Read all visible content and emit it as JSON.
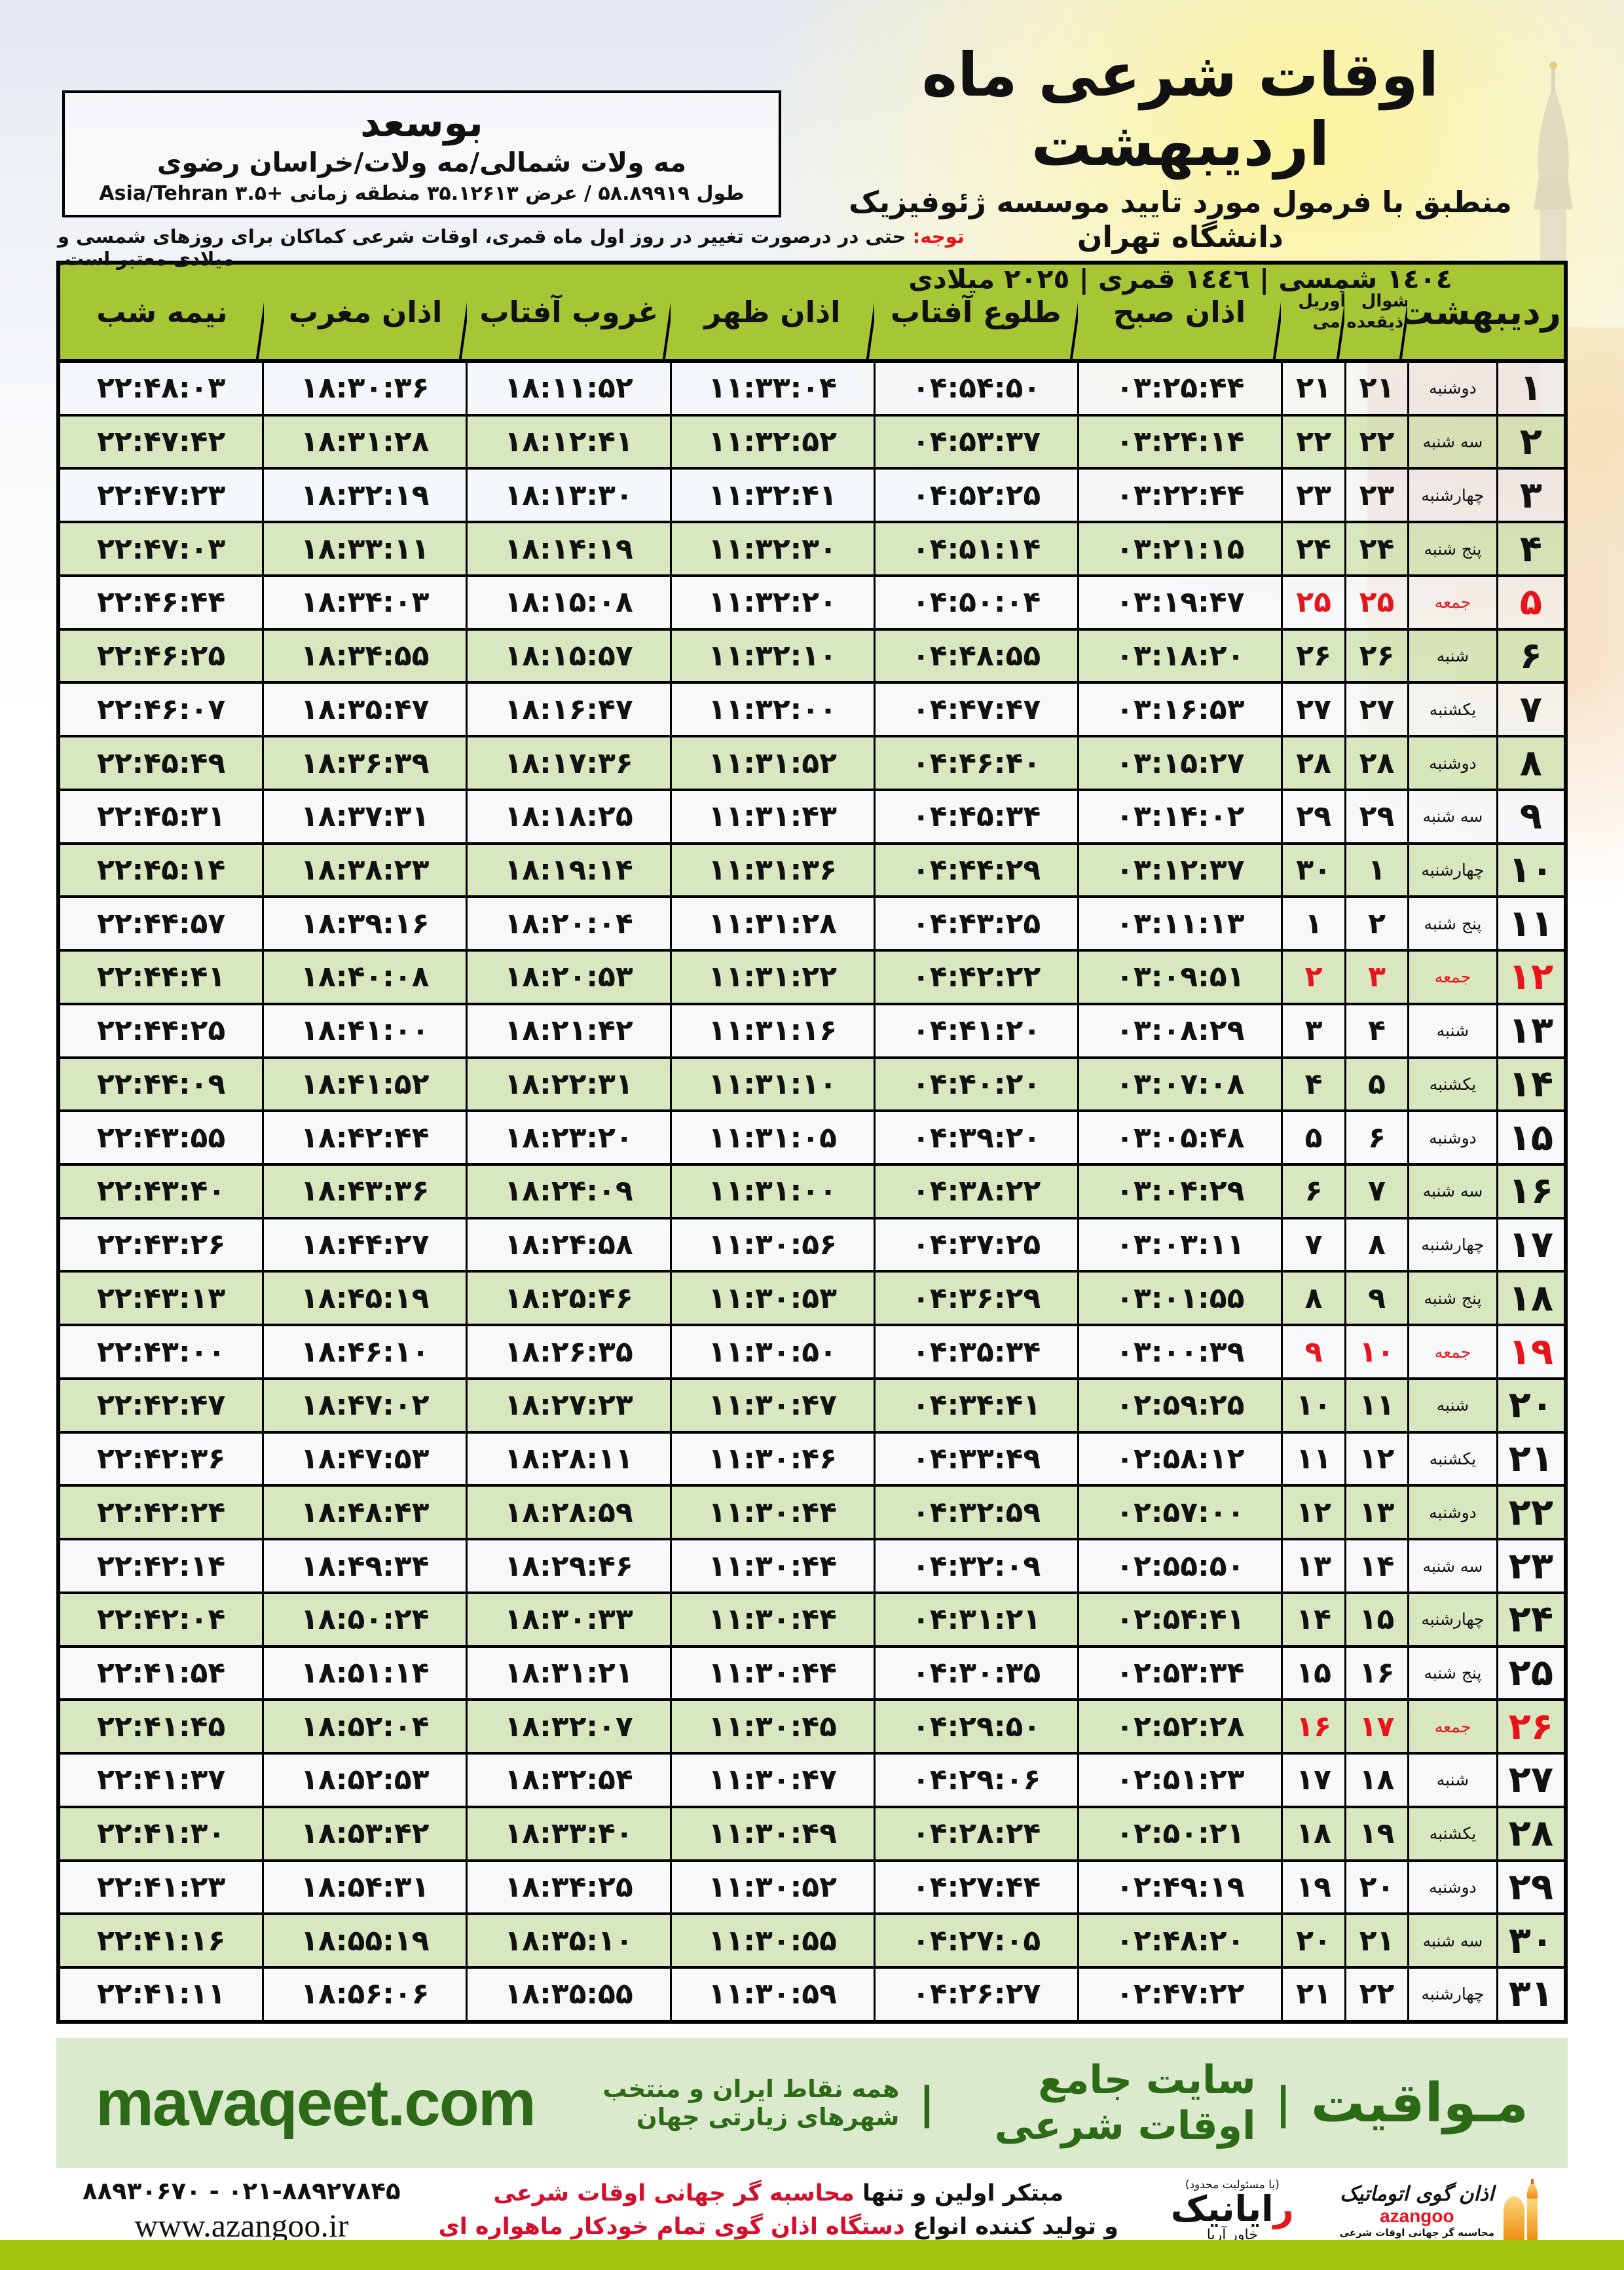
{
  "location_box": {
    "city": "بوسعد",
    "region": "مه ولات شمالی/مه ولات/خراسان رضوی",
    "coordinates": "طول ۵۸.۸۹۹۱۹ / عرض ۳۵.۱۲۶۱۳ منطقه زمانی +۳.۵ Asia/Tehran"
  },
  "header": {
    "title": "اوقات شرعی ماه اردیبهشت",
    "subtitle": "منطبق با فرمول مورد تایید موسسه ژئوفیزیک دانشگاه تهران",
    "years": "١٤٠٤ شمسی | ١٤٤٦ قمری | ٢٠٢٥ میلادی"
  },
  "notice": {
    "label": "توجه:",
    "text": "حتی در درصورت تغییر در روز اول ماه قمری، اوقات شرعی کماکان برای روزهای شمسی و میلادی معتبر است."
  },
  "table": {
    "headers": {
      "month": "اردیبهشت",
      "qamari_top": "شوال",
      "qamari_bottom": "ذیقعده",
      "miladi_top": "آوریل",
      "miladi_bottom": "می",
      "fajr": "اذان صبح",
      "sunrise": "طلوع آفتاب",
      "dhuhr": "اذان ظهر",
      "sunset": "غروب آفتاب",
      "maghrib": "اذان مغرب",
      "midnight": "نیمه شب"
    },
    "rows": [
      {
        "d": "۱",
        "w": "دوشنبه",
        "q": "۲۱",
        "m": "۲۱",
        "sobh": "۰۳:۲۵:۴۴",
        "tolu": "۰۴:۵۴:۵۰",
        "zohr": "۱۱:۳۳:۰۴",
        "ghorub": "۱۸:۱۱:۵۲",
        "maghreb": "۱۸:۳۰:۳۶",
        "nimeshab": "۲۲:۴۸:۰۳",
        "friday": false
      },
      {
        "d": "۲",
        "w": "سه شنبه",
        "q": "۲۲",
        "m": "۲۲",
        "sobh": "۰۳:۲۴:۱۴",
        "tolu": "۰۴:۵۳:۳۷",
        "zohr": "۱۱:۳۲:۵۲",
        "ghorub": "۱۸:۱۲:۴۱",
        "maghreb": "۱۸:۳۱:۲۸",
        "nimeshab": "۲۲:۴۷:۴۲",
        "friday": false
      },
      {
        "d": "۳",
        "w": "چهارشنبه",
        "q": "۲۳",
        "m": "۲۳",
        "sobh": "۰۳:۲۲:۴۴",
        "tolu": "۰۴:۵۲:۲۵",
        "zohr": "۱۱:۳۲:۴۱",
        "ghorub": "۱۸:۱۳:۳۰",
        "maghreb": "۱۸:۳۲:۱۹",
        "nimeshab": "۲۲:۴۷:۲۳",
        "friday": false
      },
      {
        "d": "۴",
        "w": "پنج شنبه",
        "q": "۲۴",
        "m": "۲۴",
        "sobh": "۰۳:۲۱:۱۵",
        "tolu": "۰۴:۵۱:۱۴",
        "zohr": "۱۱:۳۲:۳۰",
        "ghorub": "۱۸:۱۴:۱۹",
        "maghreb": "۱۸:۳۳:۱۱",
        "nimeshab": "۲۲:۴۷:۰۳",
        "friday": false
      },
      {
        "d": "۵",
        "w": "جمعه",
        "q": "۲۵",
        "m": "۲۵",
        "sobh": "۰۳:۱۹:۴۷",
        "tolu": "۰۴:۵۰:۰۴",
        "zohr": "۱۱:۳۲:۲۰",
        "ghorub": "۱۸:۱۵:۰۸",
        "maghreb": "۱۸:۳۴:۰۳",
        "nimeshab": "۲۲:۴۶:۴۴",
        "friday": true
      },
      {
        "d": "۶",
        "w": "شنبه",
        "q": "۲۶",
        "m": "۲۶",
        "sobh": "۰۳:۱۸:۲۰",
        "tolu": "۰۴:۴۸:۵۵",
        "zohr": "۱۱:۳۲:۱۰",
        "ghorub": "۱۸:۱۵:۵۷",
        "maghreb": "۱۸:۳۴:۵۵",
        "nimeshab": "۲۲:۴۶:۲۵",
        "friday": false
      },
      {
        "d": "۷",
        "w": "یکشنبه",
        "q": "۲۷",
        "m": "۲۷",
        "sobh": "۰۳:۱۶:۵۳",
        "tolu": "۰۴:۴۷:۴۷",
        "zohr": "۱۱:۳۲:۰۰",
        "ghorub": "۱۸:۱۶:۴۷",
        "maghreb": "۱۸:۳۵:۴۷",
        "nimeshab": "۲۲:۴۶:۰۷",
        "friday": false
      },
      {
        "d": "۸",
        "w": "دوشنبه",
        "q": "۲۸",
        "m": "۲۸",
        "sobh": "۰۳:۱۵:۲۷",
        "tolu": "۰۴:۴۶:۴۰",
        "zohr": "۱۱:۳۱:۵۲",
        "ghorub": "۱۸:۱۷:۳۶",
        "maghreb": "۱۸:۳۶:۳۹",
        "nimeshab": "۲۲:۴۵:۴۹",
        "friday": false
      },
      {
        "d": "۹",
        "w": "سه شنبه",
        "q": "۲۹",
        "m": "۲۹",
        "sobh": "۰۳:۱۴:۰۲",
        "tolu": "۰۴:۴۵:۳۴",
        "zohr": "۱۱:۳۱:۴۳",
        "ghorub": "۱۸:۱۸:۲۵",
        "maghreb": "۱۸:۳۷:۳۱",
        "nimeshab": "۲۲:۴۵:۳۱",
        "friday": false
      },
      {
        "d": "۱۰",
        "w": "چهارشنبه",
        "q": "۱",
        "m": "۳۰",
        "sobh": "۰۳:۱۲:۳۷",
        "tolu": "۰۴:۴۴:۲۹",
        "zohr": "۱۱:۳۱:۳۶",
        "ghorub": "۱۸:۱۹:۱۴",
        "maghreb": "۱۸:۳۸:۲۳",
        "nimeshab": "۲۲:۴۵:۱۴",
        "friday": false
      },
      {
        "d": "۱۱",
        "w": "پنج شنبه",
        "q": "۲",
        "m": "۱",
        "sobh": "۰۳:۱۱:۱۳",
        "tolu": "۰۴:۴۳:۲۵",
        "zohr": "۱۱:۳۱:۲۸",
        "ghorub": "۱۸:۲۰:۰۴",
        "maghreb": "۱۸:۳۹:۱۶",
        "nimeshab": "۲۲:۴۴:۵۷",
        "friday": false
      },
      {
        "d": "۱۲",
        "w": "جمعه",
        "q": "۳",
        "m": "۲",
        "sobh": "۰۳:۰۹:۵۱",
        "tolu": "۰۴:۴۲:۲۲",
        "zohr": "۱۱:۳۱:۲۲",
        "ghorub": "۱۸:۲۰:۵۳",
        "maghreb": "۱۸:۴۰:۰۸",
        "nimeshab": "۲۲:۴۴:۴۱",
        "friday": true
      },
      {
        "d": "۱۳",
        "w": "شنبه",
        "q": "۴",
        "m": "۳",
        "sobh": "۰۳:۰۸:۲۹",
        "tolu": "۰۴:۴۱:۲۰",
        "zohr": "۱۱:۳۱:۱۶",
        "ghorub": "۱۸:۲۱:۴۲",
        "maghreb": "۱۸:۴۱:۰۰",
        "nimeshab": "۲۲:۴۴:۲۵",
        "friday": false
      },
      {
        "d": "۱۴",
        "w": "یکشنبه",
        "q": "۵",
        "m": "۴",
        "sobh": "۰۳:۰۷:۰۸",
        "tolu": "۰۴:۴۰:۲۰",
        "zohr": "۱۱:۳۱:۱۰",
        "ghorub": "۱۸:۲۲:۳۱",
        "maghreb": "۱۸:۴۱:۵۲",
        "nimeshab": "۲۲:۴۴:۰۹",
        "friday": false
      },
      {
        "d": "۱۵",
        "w": "دوشنبه",
        "q": "۶",
        "m": "۵",
        "sobh": "۰۳:۰۵:۴۸",
        "tolu": "۰۴:۳۹:۲۰",
        "zohr": "۱۱:۳۱:۰۵",
        "ghorub": "۱۸:۲۳:۲۰",
        "maghreb": "۱۸:۴۲:۴۴",
        "nimeshab": "۲۲:۴۳:۵۵",
        "friday": false
      },
      {
        "d": "۱۶",
        "w": "سه شنبه",
        "q": "۷",
        "m": "۶",
        "sobh": "۰۳:۰۴:۲۹",
        "tolu": "۰۴:۳۸:۲۲",
        "zohr": "۱۱:۳۱:۰۰",
        "ghorub": "۱۸:۲۴:۰۹",
        "maghreb": "۱۸:۴۳:۳۶",
        "nimeshab": "۲۲:۴۳:۴۰",
        "friday": false
      },
      {
        "d": "۱۷",
        "w": "چهارشنبه",
        "q": "۸",
        "m": "۷",
        "sobh": "۰۳:۰۳:۱۱",
        "tolu": "۰۴:۳۷:۲۵",
        "zohr": "۱۱:۳۰:۵۶",
        "ghorub": "۱۸:۲۴:۵۸",
        "maghreb": "۱۸:۴۴:۲۷",
        "nimeshab": "۲۲:۴۳:۲۶",
        "friday": false
      },
      {
        "d": "۱۸",
        "w": "پنج شنبه",
        "q": "۹",
        "m": "۸",
        "sobh": "۰۳:۰۱:۵۵",
        "tolu": "۰۴:۳۶:۲۹",
        "zohr": "۱۱:۳۰:۵۳",
        "ghorub": "۱۸:۲۵:۴۶",
        "maghreb": "۱۸:۴۵:۱۹",
        "nimeshab": "۲۲:۴۳:۱۳",
        "friday": false
      },
      {
        "d": "۱۹",
        "w": "جمعه",
        "q": "۱۰",
        "m": "۹",
        "sobh": "۰۳:۰۰:۳۹",
        "tolu": "۰۴:۳۵:۳۴",
        "zohr": "۱۱:۳۰:۵۰",
        "ghorub": "۱۸:۲۶:۳۵",
        "maghreb": "۱۸:۴۶:۱۰",
        "nimeshab": "۲۲:۴۳:۰۰",
        "friday": true
      },
      {
        "d": "۲۰",
        "w": "شنبه",
        "q": "۱۱",
        "m": "۱۰",
        "sobh": "۰۲:۵۹:۲۵",
        "tolu": "۰۴:۳۴:۴۱",
        "zohr": "۱۱:۳۰:۴۷",
        "ghorub": "۱۸:۲۷:۲۳",
        "maghreb": "۱۸:۴۷:۰۲",
        "nimeshab": "۲۲:۴۲:۴۷",
        "friday": false
      },
      {
        "d": "۲۱",
        "w": "یکشنبه",
        "q": "۱۲",
        "m": "۱۱",
        "sobh": "۰۲:۵۸:۱۲",
        "tolu": "۰۴:۳۳:۴۹",
        "zohr": "۱۱:۳۰:۴۶",
        "ghorub": "۱۸:۲۸:۱۱",
        "maghreb": "۱۸:۴۷:۵۳",
        "nimeshab": "۲۲:۴۲:۳۶",
        "friday": false
      },
      {
        "d": "۲۲",
        "w": "دوشنبه",
        "q": "۱۳",
        "m": "۱۲",
        "sobh": "۰۲:۵۷:۰۰",
        "tolu": "۰۴:۳۲:۵۹",
        "zohr": "۱۱:۳۰:۴۴",
        "ghorub": "۱۸:۲۸:۵۹",
        "maghreb": "۱۸:۴۸:۴۳",
        "nimeshab": "۲۲:۴۲:۲۴",
        "friday": false
      },
      {
        "d": "۲۳",
        "w": "سه شنبه",
        "q": "۱۴",
        "m": "۱۳",
        "sobh": "۰۲:۵۵:۵۰",
        "tolu": "۰۴:۳۲:۰۹",
        "zohr": "۱۱:۳۰:۴۴",
        "ghorub": "۱۸:۲۹:۴۶",
        "maghreb": "۱۸:۴۹:۳۴",
        "nimeshab": "۲۲:۴۲:۱۴",
        "friday": false
      },
      {
        "d": "۲۴",
        "w": "چهارشنبه",
        "q": "۱۵",
        "m": "۱۴",
        "sobh": "۰۲:۵۴:۴۱",
        "tolu": "۰۴:۳۱:۲۱",
        "zohr": "۱۱:۳۰:۴۴",
        "ghorub": "۱۸:۳۰:۳۳",
        "maghreb": "۱۸:۵۰:۲۴",
        "nimeshab": "۲۲:۴۲:۰۴",
        "friday": false
      },
      {
        "d": "۲۵",
        "w": "پنج شنبه",
        "q": "۱۶",
        "m": "۱۵",
        "sobh": "۰۲:۵۳:۳۴",
        "tolu": "۰۴:۳۰:۳۵",
        "zohr": "۱۱:۳۰:۴۴",
        "ghorub": "۱۸:۳۱:۲۱",
        "maghreb": "۱۸:۵۱:۱۴",
        "nimeshab": "۲۲:۴۱:۵۴",
        "friday": false
      },
      {
        "d": "۲۶",
        "w": "جمعه",
        "q": "۱۷",
        "m": "۱۶",
        "sobh": "۰۲:۵۲:۲۸",
        "tolu": "۰۴:۲۹:۵۰",
        "zohr": "۱۱:۳۰:۴۵",
        "ghorub": "۱۸:۳۲:۰۷",
        "maghreb": "۱۸:۵۲:۰۴",
        "nimeshab": "۲۲:۴۱:۴۵",
        "friday": true
      },
      {
        "d": "۲۷",
        "w": "شنبه",
        "q": "۱۸",
        "m": "۱۷",
        "sobh": "۰۲:۵۱:۲۳",
        "tolu": "۰۴:۲۹:۰۶",
        "zohr": "۱۱:۳۰:۴۷",
        "ghorub": "۱۸:۳۲:۵۴",
        "maghreb": "۱۸:۵۲:۵۳",
        "nimeshab": "۲۲:۴۱:۳۷",
        "friday": false
      },
      {
        "d": "۲۸",
        "w": "یکشنبه",
        "q": "۱۹",
        "m": "۱۸",
        "sobh": "۰۲:۵۰:۲۱",
        "tolu": "۰۴:۲۸:۲۴",
        "zohr": "۱۱:۳۰:۴۹",
        "ghorub": "۱۸:۳۳:۴۰",
        "maghreb": "۱۸:۵۳:۴۲",
        "nimeshab": "۲۲:۴۱:۳۰",
        "friday": false
      },
      {
        "d": "۲۹",
        "w": "دوشنبه",
        "q": "۲۰",
        "m": "۱۹",
        "sobh": "۰۲:۴۹:۱۹",
        "tolu": "۰۴:۲۷:۴۴",
        "zohr": "۱۱:۳۰:۵۲",
        "ghorub": "۱۸:۳۴:۲۵",
        "maghreb": "۱۸:۵۴:۳۱",
        "nimeshab": "۲۲:۴۱:۲۳",
        "friday": false
      },
      {
        "d": "۳۰",
        "w": "سه شنبه",
        "q": "۲۱",
        "m": "۲۰",
        "sobh": "۰۲:۴۸:۲۰",
        "tolu": "۰۴:۲۷:۰۵",
        "zohr": "۱۱:۳۰:۵۵",
        "ghorub": "۱۸:۳۵:۱۰",
        "maghreb": "۱۸:۵۵:۱۹",
        "nimeshab": "۲۲:۴۱:۱۶",
        "friday": false
      },
      {
        "d": "۳۱",
        "w": "چهارشنبه",
        "q": "۲۲",
        "m": "۲۱",
        "sobh": "۰۲:۴۷:۲۲",
        "tolu": "۰۴:۲۶:۲۷",
        "zohr": "۱۱:۳۰:۵۹",
        "ghorub": "۱۸:۳۵:۵۵",
        "maghreb": "۱۸:۵۶:۰۶",
        "nimeshab": "۲۲:۴۱:۱۱",
        "friday": false
      }
    ]
  },
  "footer_band": {
    "brand_fa": "مـواقیت",
    "separator": "|",
    "tagline1": "سایت جامع اوقات شرعی",
    "tagline2": "همه نقاط ایران و منتخب شهرهای زیارتی جهان",
    "domain": "mavaqeet.com"
  },
  "bottom": {
    "phones": "۰۲۱-۸۸۹۲۷۸۴۵ - ۸۸۹۳۰۶۷۰",
    "website": "www.azangoo.ir",
    "maker_line1_black": "مبتکر اولین و تنها ",
    "maker_line1_red": "محاسبه گر جهانی اوقات شرعی",
    "maker_line2_black": "و تولید کننده انواع ",
    "maker_line2_red": "دستگاه اذان گوی تمام خودکار ماهواره ای",
    "rayanik_note": "(با مسئولیت محدود)",
    "rayanik_first_letter": "ر",
    "rayanik_rest": "ایانیک",
    "rayanik_sub": "خاور آریا",
    "azangoo_title": "اذان گوی اتوماتیک",
    "azangoo_latin": "azangoo",
    "azangoo_sub": "محاسبه گر جهانی اوقات شرعی"
  },
  "colors": {
    "header_green": "#a7c636",
    "row_green": "#d5e5ba",
    "row_white": "#f4f6f9",
    "friday_red": "#e8131b",
    "dark_green_text": "#2d6a17",
    "band_bg": "#dbe9cc",
    "bottom_bar": "#a3c711"
  }
}
